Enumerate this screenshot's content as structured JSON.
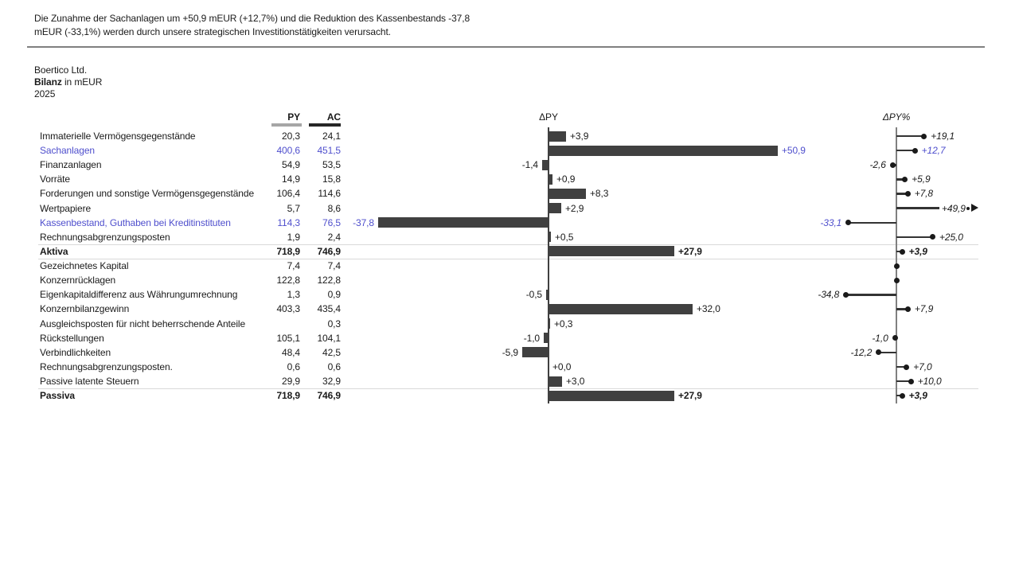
{
  "report": {
    "message": "Die Zunahme der Sachanlagen um +50,9 mEUR (+12,7%) und die Reduktion des Kassenbestands -37,8 mEUR (-33,1%) werden durch unsere strategischen Investitionstätigkeiten verursacht.",
    "company": "Boertico Ltd.",
    "title_bold": "Bilanz",
    "title_suffix": " in mEUR",
    "year": "2025"
  },
  "colors": {
    "bar": "#404040",
    "highlight": "#4f4fcd",
    "axis_dpy": "#404040",
    "axis_pct": "#808080",
    "separator_light": "#d9d9d9",
    "separator_title": "#808080",
    "py_underline": "#a6a6a6",
    "ac_underline": "#262626",
    "text": "#1a1a1a"
  },
  "chart_data": {
    "type": "table",
    "subtype": "ibcs-variance-bar-and-pin",
    "title": "Bilanz in mEUR 2025",
    "unit": "mEUR",
    "columns": [
      "PY",
      "AC"
    ],
    "dpy_title": "ΔPY",
    "dpy_pct_title": "ΔPY%",
    "legend_position": "none",
    "grid": "off",
    "dpy_axis_range": [
      -44,
      57
    ],
    "dpy_pct_axis_range": [
      -53,
      57
    ],
    "rows": [
      {
        "label": "Immaterielle Vermögensgegenstände",
        "py": "20,3",
        "ac": "24,1",
        "dpy": 3.9,
        "dpy_label": "+3,9",
        "pct": 19.1,
        "pct_label": "+19,1"
      },
      {
        "label": "Sachanlagen",
        "py": "400,6",
        "ac": "451,5",
        "dpy": 50.9,
        "dpy_label": "+50,9",
        "pct": 12.7,
        "pct_label": "+12,7",
        "highlight": true
      },
      {
        "label": "Finanzanlagen",
        "py": "54,9",
        "ac": "53,5",
        "dpy": -1.4,
        "dpy_label": "-1,4",
        "pct": -2.6,
        "pct_label": "-2,6"
      },
      {
        "label": "Vorräte",
        "py": "14,9",
        "ac": "15,8",
        "dpy": 0.9,
        "dpy_label": "+0,9",
        "pct": 5.9,
        "pct_label": "+5,9"
      },
      {
        "label": "Forderungen und sonstige Vermögensgegenstände",
        "py": "106,4",
        "ac": "114,6",
        "dpy": 8.3,
        "dpy_label": "+8,3",
        "pct": 7.8,
        "pct_label": "+7,8"
      },
      {
        "label": "Wertpapiere",
        "py": "5,7",
        "ac": "8,6",
        "dpy": 2.9,
        "dpy_label": "+2,9",
        "pct": 49.9,
        "pct_label": "+49,9",
        "pct_outlier": true
      },
      {
        "label": "Kassenbestand, Guthaben bei Kreditinstituten",
        "py": "114,3",
        "ac": "76,5",
        "dpy": -37.8,
        "dpy_label": "-37,8",
        "pct": -33.1,
        "pct_label": "-33,1",
        "highlight": true
      },
      {
        "label": "Rechnungsabgrenzungsposten",
        "py": "1,9",
        "ac": "2,4",
        "dpy": 0.5,
        "dpy_label": "+0,5",
        "pct": 25.0,
        "pct_label": "+25,0"
      },
      {
        "label": "Aktiva",
        "py": "718,9",
        "ac": "746,9",
        "dpy": 27.9,
        "dpy_label": "+27,9",
        "pct": 3.9,
        "pct_label": "+3,9",
        "total": true
      },
      {
        "label": "Gezeichnetes Kapital",
        "py": "7,4",
        "ac": "7,4",
        "dpy": null,
        "dpy_label": "",
        "pct": 0,
        "pct_label": "",
        "pct_dot_only": true
      },
      {
        "label": "Konzernrücklagen",
        "py": "122,8",
        "ac": "122,8",
        "dpy": null,
        "dpy_label": "",
        "pct": 0,
        "pct_label": "",
        "pct_dot_only": true
      },
      {
        "label": "Eigenkapitaldifferenz aus Währungumrechnung",
        "py": "1,3",
        "ac": "0,9",
        "dpy": -0.5,
        "dpy_label": "-0,5",
        "pct": -34.8,
        "pct_label": "-34,8"
      },
      {
        "label": "Konzernbilanzgewinn",
        "py": "403,3",
        "ac": "435,4",
        "dpy": 32.0,
        "dpy_label": "+32,0",
        "pct": 7.9,
        "pct_label": "+7,9"
      },
      {
        "label": "Ausgleichsposten für nicht beherrschende Anteile",
        "py": "",
        "ac": "0,3",
        "dpy": 0.3,
        "dpy_label": "+0,3",
        "pct": null,
        "pct_label": ""
      },
      {
        "label": "Rückstellungen",
        "py": "105,1",
        "ac": "104,1",
        "dpy": -1.0,
        "dpy_label": "-1,0",
        "pct": -1.0,
        "pct_label": "-1,0"
      },
      {
        "label": "Verbindlichkeiten",
        "py": "48,4",
        "ac": "42,5",
        "dpy": -5.9,
        "dpy_label": "-5,9",
        "pct": -12.2,
        "pct_label": "-12,2"
      },
      {
        "label": "Rechnungsabgrenzungsposten.",
        "py": "0,6",
        "ac": "0,6",
        "dpy": 0.0,
        "dpy_label": "+0,0",
        "pct": 7.0,
        "pct_label": "+7,0"
      },
      {
        "label": "Passive latente Steuern",
        "py": "29,9",
        "ac": "32,9",
        "dpy": 3.0,
        "dpy_label": "+3,0",
        "pct": 10.0,
        "pct_label": "+10,0"
      },
      {
        "label": "Passiva",
        "py": "718,9",
        "ac": "746,9",
        "dpy": 27.9,
        "dpy_label": "+27,9",
        "pct": 3.9,
        "pct_label": "+3,9",
        "total": true
      }
    ]
  }
}
